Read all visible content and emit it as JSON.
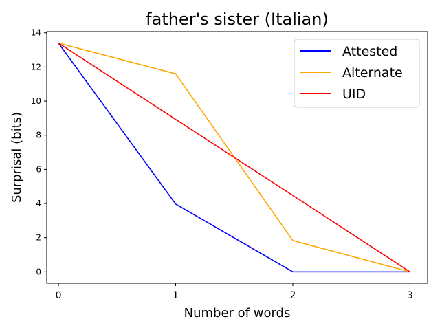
{
  "chart_data": {
    "type": "line",
    "title": "father's sister (Italian)",
    "xlabel": "Number of words",
    "ylabel": "Surprisal (bits)",
    "x": [
      0,
      1,
      2,
      3
    ],
    "xticks": [
      "0",
      "1",
      "2",
      "3"
    ],
    "yticks": [
      "0",
      "2",
      "4",
      "6",
      "8",
      "10",
      "12",
      "14"
    ],
    "xlim": [
      -0.1,
      3.15
    ],
    "ylim": [
      -0.67,
      14.07
    ],
    "grid": false,
    "legend_position": "top-right",
    "series": [
      {
        "name": "Attested",
        "color": "#0000ff",
        "values": [
          13.4,
          3.97,
          0.0,
          0.0
        ]
      },
      {
        "name": "Alternate",
        "color": "#ffa500",
        "values": [
          13.4,
          11.6,
          1.83,
          0.0
        ]
      },
      {
        "name": "UID",
        "color": "#ff0000",
        "values": [
          13.4,
          8.93,
          4.47,
          0.0
        ]
      }
    ]
  }
}
